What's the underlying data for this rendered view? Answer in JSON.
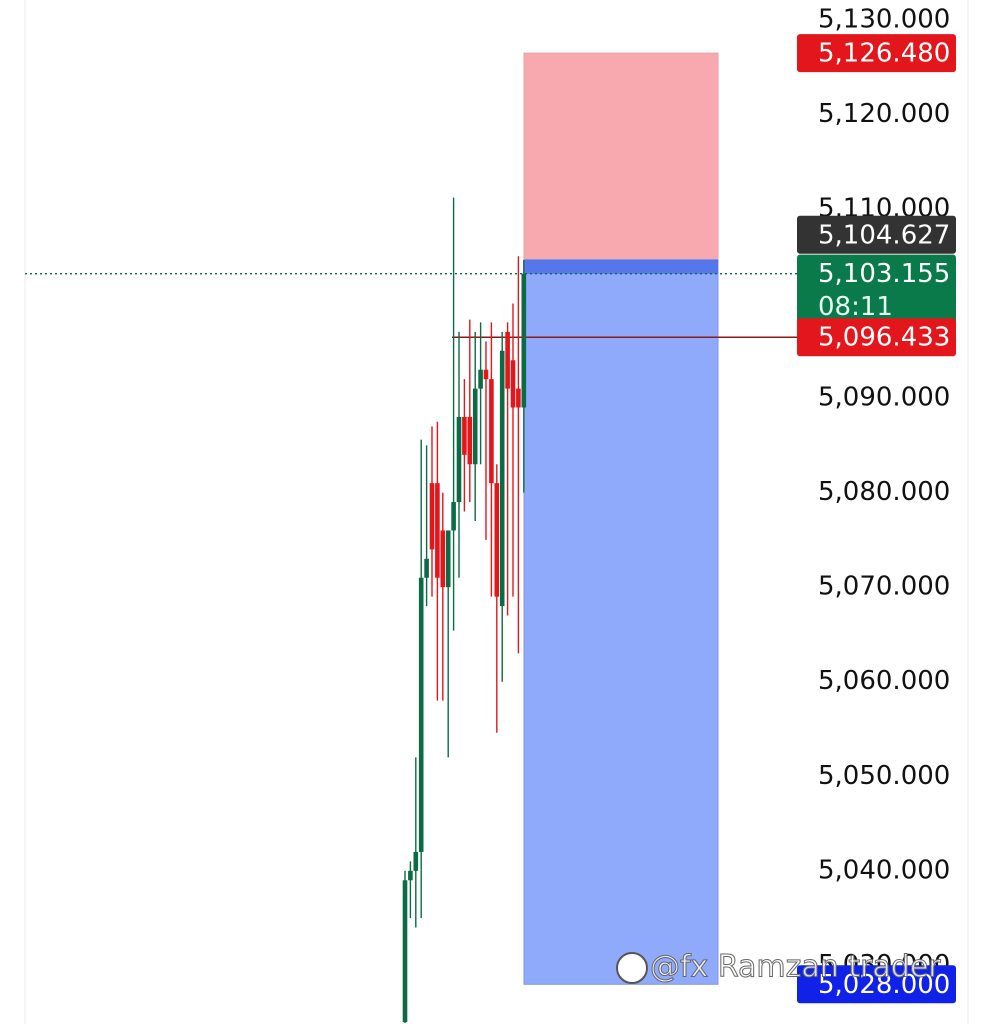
{
  "chart_data": {
    "type": "candlestick",
    "open": [
      5024,
      5039,
      5040,
      5042,
      5071,
      5081,
      5081,
      5076,
      5070,
      5076,
      5079,
      5088,
      5088,
      5083,
      5091,
      5093,
      5092,
      5081,
      5068,
      5097,
      5094,
      5091,
      5089
    ],
    "high": [
      5040,
      5041,
      5052,
      5085.6,
      5085,
      5087,
      5087.5,
      5080,
      5075,
      5111.2,
      5097,
      5092,
      5098.3,
      5097,
      5098,
      5096,
      5098,
      5083,
      5097,
      5098,
      5100,
      5105,
      5104.6
    ],
    "low": [
      5023.9,
      5035,
      5034,
      5035,
      5068,
      5069,
      5058,
      5058,
      5052,
      5065.4,
      5071,
      5078,
      5079,
      5077,
      5083,
      5075,
      5069,
      5054.6,
      5060,
      5067,
      5069,
      5063,
      5080
    ],
    "close": [
      5039,
      5040,
      5042,
      5071,
      5073,
      5074,
      5071,
      5070,
      5076,
      5079,
      5088,
      5084,
      5083,
      5091,
      5093,
      5092,
      5081,
      5069,
      5095,
      5091,
      5089,
      5089,
      5103.155
    ],
    "up_color": "#0b6b45",
    "down_color": "#e3161c",
    "ylim": [
      5023.8,
      5132.1
    ],
    "yticks": [
      {
        "value": 5030,
        "label": "5,030.000"
      },
      {
        "value": 5040,
        "label": "5,040.000"
      },
      {
        "value": 5050,
        "label": "5,050.000"
      },
      {
        "value": 5060,
        "label": "5,060.000"
      },
      {
        "value": 5070,
        "label": "5,070.000"
      },
      {
        "value": 5080,
        "label": "5,080.000"
      },
      {
        "value": 5090,
        "label": "5,090.000"
      },
      {
        "value": 5100,
        "label": "5,100.000"
      },
      {
        "value": 5110,
        "label": "5,110.000"
      },
      {
        "value": 5120,
        "label": "5,120.000"
      },
      {
        "value": 5130,
        "label": "5,130.000"
      }
    ],
    "position": {
      "stop": 5126.48,
      "entry": 5104.627,
      "target": 5028,
      "stop_color": "#f8a9b0",
      "target_color": "#8fa9fb"
    },
    "lines": [
      {
        "value": 5103.155,
        "style": "dotted",
        "color": "#0b6b45"
      },
      {
        "value": 5096.433,
        "style": "solid",
        "color": "#8b1a1a"
      }
    ],
    "price_labels": [
      {
        "value": 5126.48,
        "label": "5,126.480",
        "color": "#e3161c"
      },
      {
        "value": 5104.627,
        "label": "5,104.627",
        "color": "#333333"
      },
      {
        "value": 5103.155,
        "label": "5,103.155",
        "sublabel": "08:11",
        "color": "#0b7a4b"
      },
      {
        "value": 5096.433,
        "label": "5,096.433",
        "color": "#e3161c"
      },
      {
        "value": 5028,
        "label": "5,028.000",
        "color": "#1022e8"
      }
    ],
    "watermark": "@fx Ramzan trader"
  }
}
